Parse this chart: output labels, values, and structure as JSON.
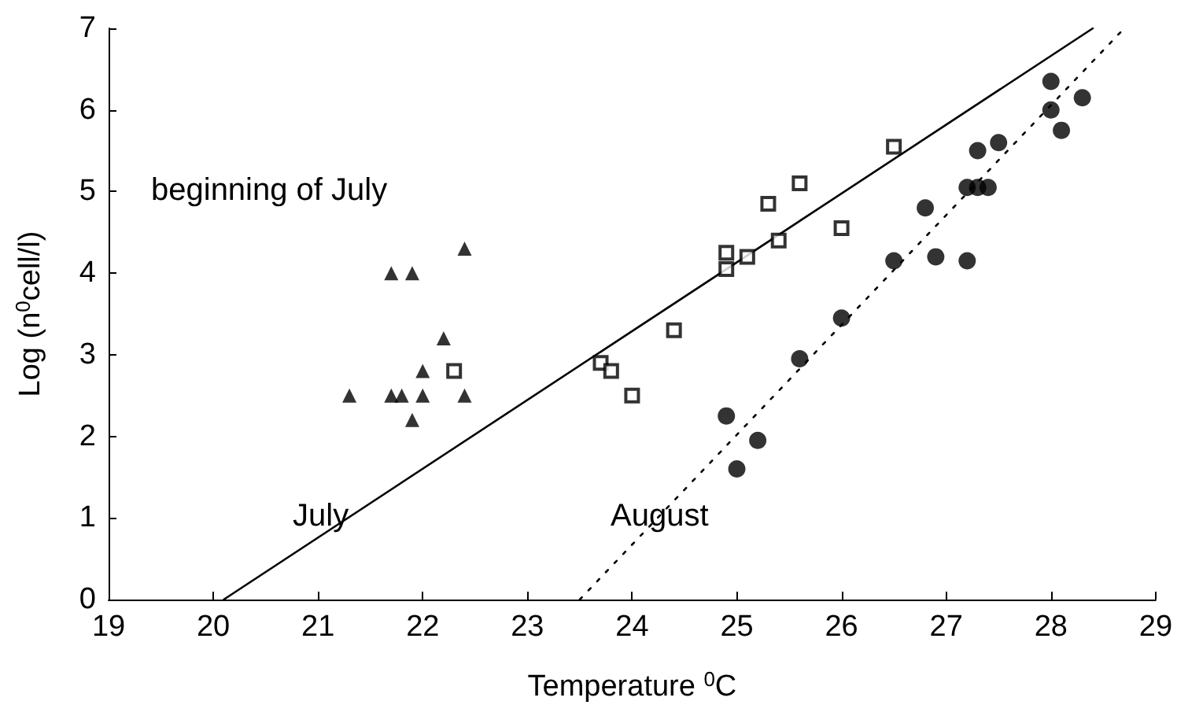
{
  "chart_data": {
    "type": "scatter",
    "xlabel": "Temperature $^{0}$C",
    "ylabel": "Log (n$^{0}$cell/l)",
    "xlim": [
      19,
      29
    ],
    "xticks": [
      19,
      20,
      21,
      22,
      23,
      24,
      25,
      26,
      27,
      28,
      29
    ],
    "ylim": [
      0,
      7
    ],
    "yticks": [
      0,
      1,
      2,
      3,
      4,
      5,
      6,
      7
    ],
    "grid": false,
    "annotations": [
      "beginning of July",
      "July",
      "August"
    ],
    "series": [
      {
        "marker": "triangle",
        "color": "#000000",
        "x": [
          21.3,
          21.7,
          21.9,
          22.4,
          21.7,
          21.8,
          22.0,
          22.4,
          21.9,
          22.0,
          22.2
        ],
        "values": [
          2.5,
          4.0,
          4.0,
          4.3,
          2.5,
          2.5,
          2.5,
          2.5,
          2.2,
          2.8,
          3.2
        ]
      },
      {
        "marker": "square",
        "color": "#000000",
        "x": [
          22.3,
          23.7,
          23.8,
          24.0,
          24.4,
          24.9,
          24.9,
          25.1,
          25.3,
          25.4,
          25.6,
          26.0,
          26.5
        ],
        "values": [
          2.8,
          2.9,
          2.8,
          2.5,
          3.3,
          4.05,
          4.25,
          4.2,
          4.85,
          4.4,
          5.1,
          4.55,
          5.55
        ]
      },
      {
        "marker": "circle",
        "color": "#000000",
        "x": [
          24.9,
          25.0,
          25.2,
          25.6,
          26.0,
          26.5,
          26.8,
          26.9,
          27.2,
          27.2,
          27.3,
          27.4,
          27.3,
          27.5,
          28.0,
          28.0,
          28.1,
          28.3
        ],
        "values": [
          2.25,
          1.6,
          1.95,
          2.95,
          3.45,
          4.15,
          4.8,
          4.2,
          4.15,
          5.05,
          5.05,
          5.05,
          5.5,
          5.6,
          6.35,
          6.0,
          5.75,
          6.15
        ]
      },
      {
        "type": "line",
        "marker": "none",
        "line_style": "solid",
        "color": "#000000",
        "x": [
          20.1,
          28.4
        ],
        "values": [
          0,
          7
        ]
      },
      {
        "type": "line",
        "marker": "none",
        "line_style": "dotted",
        "color": "#000000",
        "x": [
          23.5,
          28.7
        ],
        "values": [
          0,
          7
        ]
      }
    ]
  }
}
